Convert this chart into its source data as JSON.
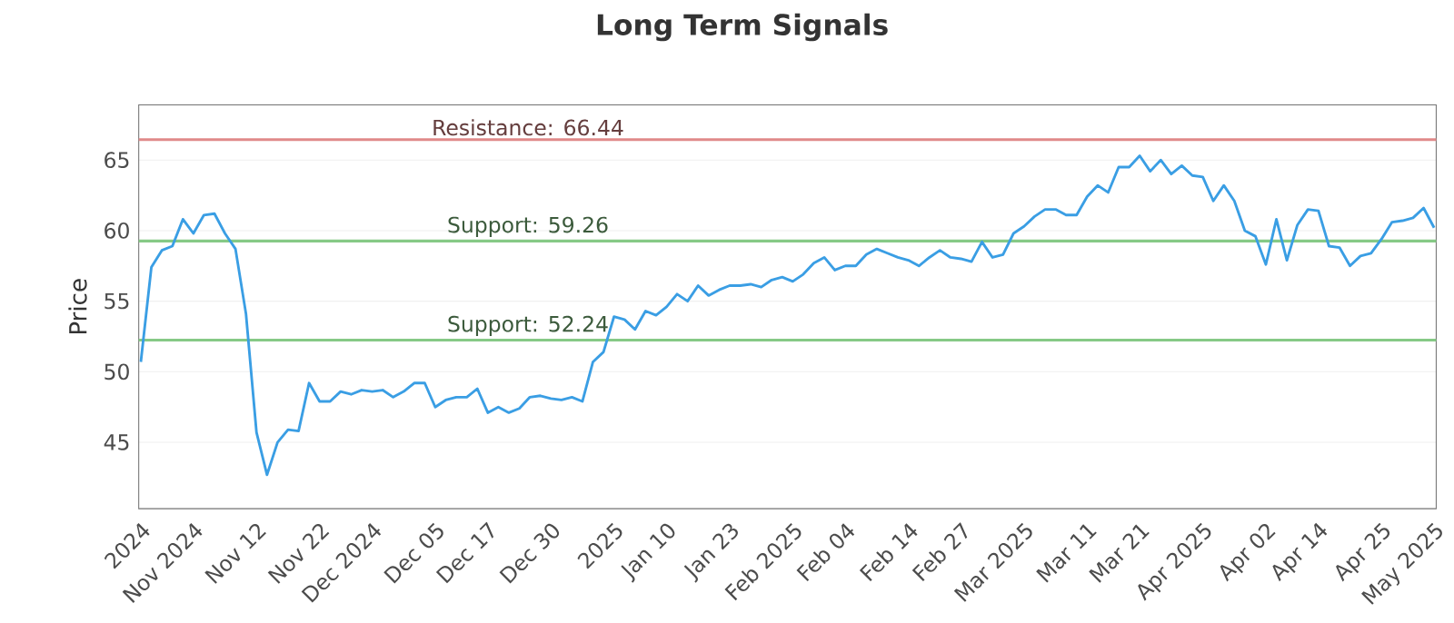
{
  "chart_data": {
    "type": "line",
    "title": "Long Term Signals",
    "ylabel": "Price",
    "categories": [
      "2024",
      null,
      null,
      null,
      null,
      "Nov 2024",
      null,
      null,
      null,
      null,
      null,
      "Nov 12",
      null,
      null,
      null,
      null,
      null,
      "Nov 22",
      null,
      null,
      null,
      null,
      "Dec 2024",
      null,
      null,
      null,
      null,
      null,
      "Dec 05",
      null,
      null,
      null,
      null,
      "Dec 17",
      null,
      null,
      null,
      null,
      null,
      "Dec 30",
      null,
      null,
      null,
      null,
      null,
      "2025",
      null,
      null,
      null,
      null,
      "Jan 10",
      null,
      null,
      null,
      null,
      null,
      "Jan 23",
      null,
      null,
      null,
      null,
      null,
      "Feb 2025",
      null,
      null,
      null,
      null,
      "Feb 04",
      null,
      null,
      null,
      null,
      null,
      "Feb 14",
      null,
      null,
      null,
      null,
      "Feb 27",
      null,
      null,
      null,
      null,
      null,
      "Mar 2025",
      null,
      null,
      null,
      null,
      null,
      "Mar 11",
      null,
      null,
      null,
      null,
      "Mar 21",
      null,
      null,
      null,
      null,
      null,
      "Apr 2025",
      null,
      null,
      null,
      null,
      null,
      "Apr 02",
      null,
      null,
      null,
      null,
      "Apr 14",
      null,
      null,
      null,
      null,
      null,
      "Apr 25",
      null,
      null,
      null,
      null,
      "May 2025"
    ],
    "series": [
      {
        "color": "#3a9ee4",
        "values": [
          50.7,
          57.4,
          58.6,
          58.9,
          60.8,
          59.8,
          61.1,
          61.2,
          59.8,
          58.7,
          54.1,
          45.7,
          42.7,
          45.0,
          45.9,
          45.8,
          49.2,
          47.9,
          47.9,
          48.6,
          48.4,
          48.7,
          48.6,
          48.7,
          48.2,
          48.6,
          49.2,
          49.2,
          47.5,
          48.0,
          48.2,
          48.2,
          48.8,
          47.1,
          47.5,
          47.1,
          47.4,
          48.2,
          48.3,
          48.1,
          48.0,
          48.2,
          47.9,
          50.7,
          51.4,
          53.9,
          53.7,
          53.0,
          54.3,
          54.0,
          54.6,
          55.5,
          55.0,
          56.1,
          55.4,
          55.8,
          56.1,
          56.1,
          56.2,
          56.0,
          56.5,
          56.7,
          56.4,
          56.9,
          57.7,
          58.1,
          57.2,
          57.5,
          57.5,
          58.3,
          58.7,
          58.4,
          58.1,
          57.9,
          57.5,
          58.1,
          58.6,
          58.1,
          58.0,
          57.8,
          59.2,
          58.1,
          58.3,
          59.8,
          60.3,
          61.0,
          61.5,
          61.5,
          61.1,
          61.1,
          62.4,
          63.2,
          62.7,
          64.5,
          64.5,
          65.3,
          64.2,
          65.0,
          64.0,
          64.6,
          63.9,
          63.8,
          62.1,
          63.2,
          62.1,
          60.0,
          59.6,
          57.6,
          60.8,
          57.9,
          60.4,
          61.5,
          61.4,
          58.9,
          58.8,
          57.5,
          58.2,
          58.4,
          59.4,
          60.6,
          60.7,
          60.9,
          61.6,
          60.2
        ]
      }
    ],
    "ylim": [
      40.3,
      68.9
    ],
    "yticks": [
      45,
      50,
      55,
      60,
      65
    ],
    "grid": "y",
    "marker": "none",
    "line_style": "solid",
    "ref_lines": [
      {
        "axis": "y",
        "value": 66.44,
        "label": "Resistance: 66.44",
        "color": "#e08a8a"
      },
      {
        "axis": "y",
        "value": 59.26,
        "label": "Support: 59.26",
        "color": "#86c986"
      },
      {
        "axis": "y",
        "value": 52.24,
        "label": "Support: 52.24",
        "color": "#86c986"
      }
    ]
  }
}
